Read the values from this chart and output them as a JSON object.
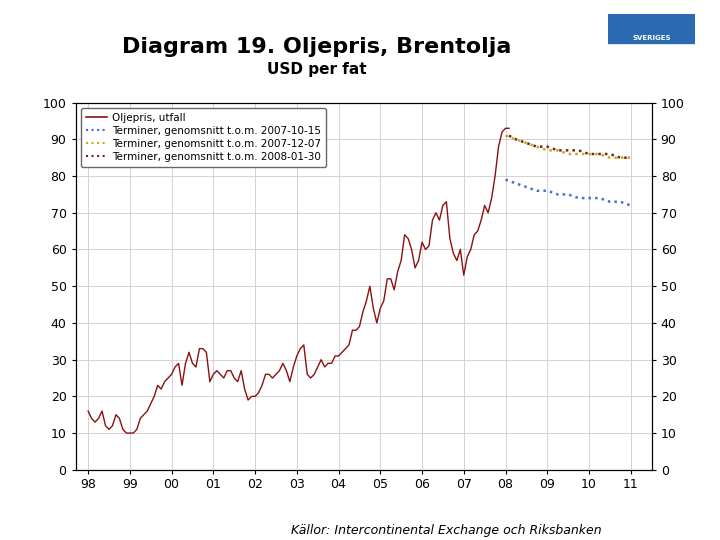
{
  "title": "Diagram 19. Oljepris, Brentolja",
  "subtitle": "USD per fat",
  "footer": "Källor: Intercontinental Exchange och Riksbanken",
  "title_fontsize": 16,
  "subtitle_fontsize": 11,
  "ylim": [
    0,
    100
  ],
  "yticks": [
    0,
    10,
    20,
    30,
    40,
    50,
    60,
    70,
    80,
    90,
    100
  ],
  "xtick_labels": [
    "98",
    "99",
    "00",
    "01",
    "02",
    "03",
    "04",
    "05",
    "06",
    "07",
    "08",
    "09",
    "10",
    "11"
  ],
  "background_color": "#ffffff",
  "plot_bg_color": "#ffffff",
  "footer_bar_color": "#1a4f8a",
  "footer_text_color": "#000000",
  "line_color_actual": "#8B1010",
  "line_color_futures1": "#4472C4",
  "line_color_futures2": "#C8A820",
  "line_color_futures3": "#7B2020",
  "legend_labels": [
    "Oljepris, utfall",
    "Terminer, genomsnitt t.o.m. 2007-10-15",
    "Terminer, genomsnitt t.o.m. 2007-12-07",
    "Terminer, genomsnitt t.o.m. 2008-01-30"
  ],
  "actual_years": [
    1998.0,
    1998.083,
    1998.167,
    1998.25,
    1998.333,
    1998.417,
    1998.5,
    1998.583,
    1998.667,
    1998.75,
    1998.833,
    1998.917,
    1999.0,
    1999.083,
    1999.167,
    1999.25,
    1999.333,
    1999.417,
    1999.5,
    1999.583,
    1999.667,
    1999.75,
    1999.833,
    1999.917,
    2000.0,
    2000.083,
    2000.167,
    2000.25,
    2000.333,
    2000.417,
    2000.5,
    2000.583,
    2000.667,
    2000.75,
    2000.833,
    2000.917,
    2001.0,
    2001.083,
    2001.167,
    2001.25,
    2001.333,
    2001.417,
    2001.5,
    2001.583,
    2001.667,
    2001.75,
    2001.833,
    2001.917,
    2002.0,
    2002.083,
    2002.167,
    2002.25,
    2002.333,
    2002.417,
    2002.5,
    2002.583,
    2002.667,
    2002.75,
    2002.833,
    2002.917,
    2003.0,
    2003.083,
    2003.167,
    2003.25,
    2003.333,
    2003.417,
    2003.5,
    2003.583,
    2003.667,
    2003.75,
    2003.833,
    2003.917,
    2004.0,
    2004.083,
    2004.167,
    2004.25,
    2004.333,
    2004.417,
    2004.5,
    2004.583,
    2004.667,
    2004.75,
    2004.833,
    2004.917,
    2005.0,
    2005.083,
    2005.167,
    2005.25,
    2005.333,
    2005.417,
    2005.5,
    2005.583,
    2005.667,
    2005.75,
    2005.833,
    2005.917,
    2006.0,
    2006.083,
    2006.167,
    2006.25,
    2006.333,
    2006.417,
    2006.5,
    2006.583,
    2006.667,
    2006.75,
    2006.833,
    2006.917,
    2007.0,
    2007.083,
    2007.167,
    2007.25,
    2007.333,
    2007.417,
    2007.5,
    2007.583,
    2007.667,
    2007.75,
    2007.833,
    2007.917,
    2008.0,
    2008.083
  ],
  "actual_prices": [
    16,
    14,
    13,
    14,
    16,
    12,
    11,
    12,
    15,
    14,
    11,
    10,
    10,
    10,
    11,
    14,
    15,
    16,
    18,
    20,
    23,
    22,
    24,
    25,
    26,
    28,
    29,
    23,
    29,
    32,
    29,
    28,
    33,
    33,
    32,
    24,
    26,
    27,
    26,
    25,
    27,
    27,
    25,
    24,
    27,
    22,
    19,
    20,
    20,
    21,
    23,
    26,
    26,
    25,
    26,
    27,
    29,
    27,
    24,
    28,
    31,
    33,
    34,
    26,
    25,
    26,
    28,
    30,
    28,
    29,
    29,
    31,
    31,
    32,
    33,
    34,
    38,
    38,
    39,
    43,
    46,
    50,
    44,
    40,
    44,
    46,
    52,
    52,
    49,
    54,
    57,
    64,
    63,
    60,
    55,
    57,
    62,
    60,
    61,
    68,
    70,
    68,
    72,
    73,
    63,
    59,
    57,
    60,
    53,
    58,
    60,
    64,
    65,
    68,
    72,
    70,
    74,
    80,
    88,
    92,
    93,
    93
  ],
  "fut1_x": [
    2008.0,
    2008.25,
    2008.5,
    2008.75,
    2009.0,
    2009.25,
    2009.5,
    2009.75,
    2010.0,
    2010.25,
    2010.5,
    2010.75,
    2011.0
  ],
  "fut1_y": [
    79,
    78,
    77,
    76,
    76,
    75,
    75,
    74,
    74,
    74,
    73,
    73,
    72
  ],
  "fut2_x": [
    2008.0,
    2008.25,
    2008.5,
    2008.75,
    2009.0,
    2009.25,
    2009.5,
    2009.75,
    2010.0,
    2010.25,
    2010.5,
    2010.75,
    2011.0
  ],
  "fut2_y": [
    91,
    90,
    89,
    88,
    87,
    87,
    86,
    86,
    86,
    86,
    85,
    85,
    85
  ],
  "fut3_x": [
    2008.083,
    2008.25,
    2008.5,
    2008.75,
    2009.0,
    2009.25,
    2009.5,
    2009.75,
    2010.0,
    2010.25,
    2010.5,
    2010.75,
    2011.0
  ],
  "fut3_y": [
    91,
    90,
    89,
    88,
    88,
    87,
    87,
    87,
    86,
    86,
    86,
    85,
    85
  ]
}
